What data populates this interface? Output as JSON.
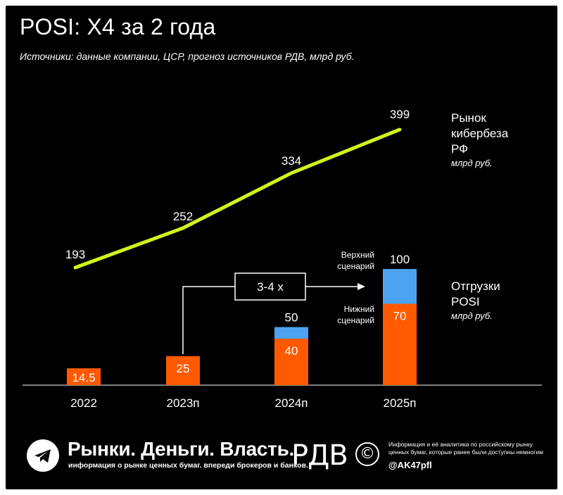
{
  "header": {
    "title": "POSI: X4 за 2 года",
    "subtitle": "Источники: данные компании, ЦСР, прогноз источников РДВ, млрд руб."
  },
  "colors": {
    "background": "#000000",
    "line": "#d4f21c",
    "bar_base": "#ff5a00",
    "bar_upper": "#4da3f0",
    "text": "#ffffff"
  },
  "chart_data": {
    "type": "bar+line",
    "categories": [
      "2022",
      "2023п",
      "2024п",
      "2025п"
    ],
    "line_series": {
      "name": "Рынок кибербеза РФ",
      "unit": "млрд руб.",
      "values": [
        193,
        252,
        334,
        399
      ]
    },
    "bar_series": [
      {
        "name": "Нижний сценарий",
        "values": [
          14.5,
          25,
          40,
          70
        ]
      },
      {
        "name": "Верхний сценарий",
        "totals": [
          null,
          null,
          50,
          100
        ]
      }
    ],
    "bar_group_label": "Отгрузки POSI",
    "bar_unit": "млрд руб.",
    "bar_data_labels": [
      "14.5",
      "25",
      "40",
      "70"
    ],
    "bar_total_labels": [
      "",
      "",
      "50",
      "100"
    ],
    "line_data_labels": [
      "193",
      "252",
      "334",
      "399"
    ],
    "annotation": "3-4 x"
  },
  "labels": {
    "market_name": "Рынок\nкибербеза\nРФ",
    "market_unit": "млрд руб.",
    "shipments_name": "Отгрузки\nPOSI",
    "shipments_unit": "млрд руб.",
    "upper_scenario": "Верхний\nсценарий",
    "lower_scenario": "Нижний\nсценарий"
  },
  "footer": {
    "channel_icon": "telegram-icon",
    "brand": "Рынки. Деньги. Власть.",
    "brand_sub": "информация о рынке ценных бумаг. впереди брокеров и банков.",
    "logo": "РДВ",
    "copyright_symbol": "©",
    "info": "Информация и её аналитика по российскому рынку ценных бумаг, которые ранее были доступны немногим",
    "handle": "@AK47pfl"
  }
}
